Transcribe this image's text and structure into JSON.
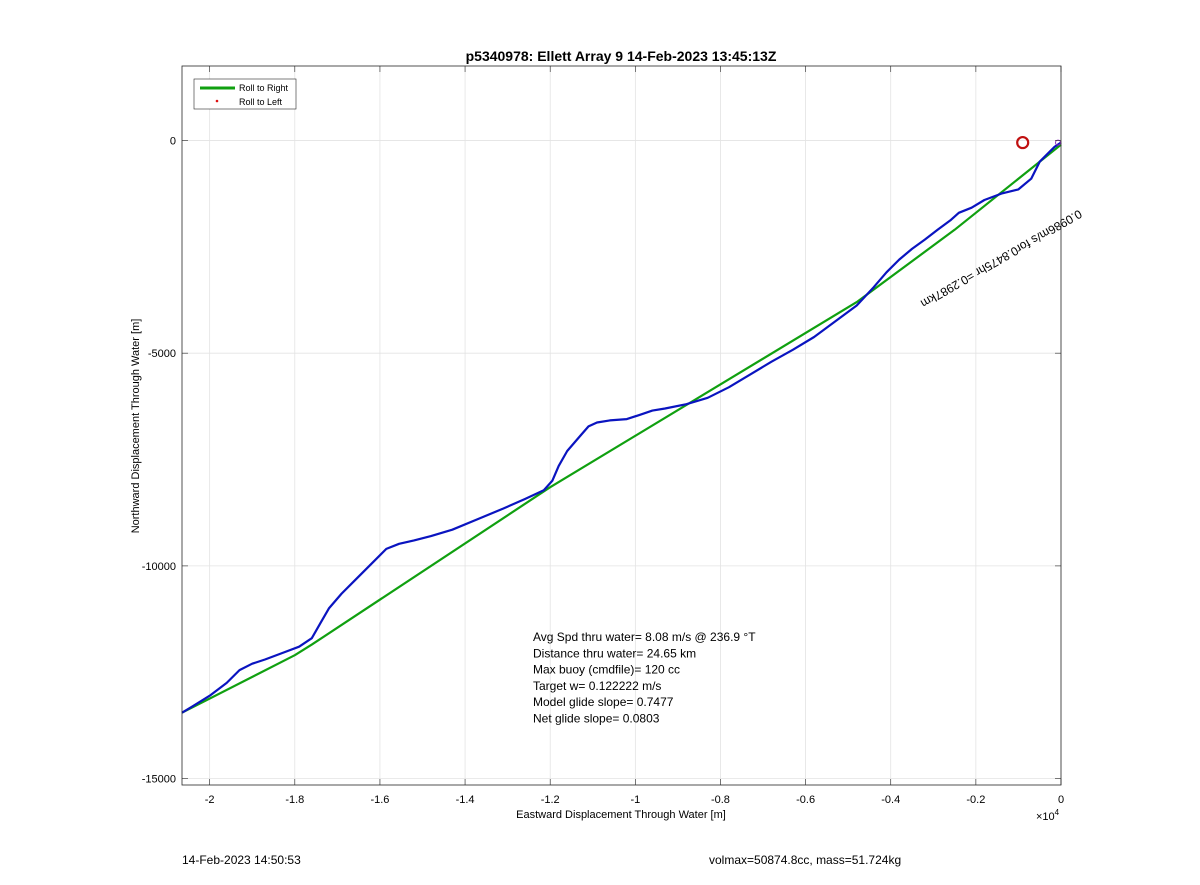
{
  "footer": {
    "timestamp": "14-Feb-2023 14:50:53",
    "vol_mass": "volmax=50874.8cc, mass=51.724kg"
  },
  "colors": {
    "roll_right": "#10a010",
    "roll_left": "#e01010",
    "track": "#0a14c0",
    "marker": "#c01010"
  },
  "chart_data": {
    "type": "line",
    "title": "p5340978: Ellett Array 9 14-Feb-2023 13:45:13Z",
    "xlabel": "Eastward Displacement Through Water [m]",
    "ylabel": "Northward Displacement Through Water [m]",
    "x_exponent_label": "×10",
    "x_exponent_power": "4",
    "xlim": [
      -20650,
      0
    ],
    "ylim": [
      -15150,
      1750
    ],
    "x_ticks": [
      -20000,
      -18000,
      -16000,
      -14000,
      -12000,
      -10000,
      -8000,
      -6000,
      -4000,
      -2000,
      0
    ],
    "x_tick_labels": [
      "-2",
      "-1.8",
      "-1.6",
      "-1.4",
      "-1.2",
      "-1",
      "-0.8",
      "-0.6",
      "-0.4",
      "-0.2",
      "0"
    ],
    "y_ticks": [
      -15000,
      -10000,
      -5000,
      0
    ],
    "y_tick_labels": [
      "-15000",
      "-10000",
      "-5000",
      "0"
    ],
    "grid": true,
    "legend_position": "top-left",
    "series": [
      {
        "name": "Roll to Right",
        "style": "line",
        "x": [
          -20650,
          -18000,
          -17600,
          -12000,
          -4800,
          -2500,
          0
        ],
        "y": [
          -13450,
          -12100,
          -11850,
          -8150,
          -3800,
          -2100,
          -100
        ]
      },
      {
        "name": "Roll to Left",
        "style": "marker",
        "x": [],
        "y": []
      }
    ],
    "track": {
      "x": [
        -20650,
        -20400,
        -20000,
        -19600,
        -19300,
        -19000,
        -18700,
        -18300,
        -17900,
        -17600,
        -17400,
        -17200,
        -16900,
        -16600,
        -16200,
        -15850,
        -15550,
        -15200,
        -14800,
        -14300,
        -13700,
        -13100,
        -12600,
        -12150,
        -11950,
        -11800,
        -11600,
        -11300,
        -11100,
        -10900,
        -10600,
        -10200,
        -9900,
        -9600,
        -9300,
        -8800,
        -8300,
        -7800,
        -7300,
        -6800,
        -6300,
        -5800,
        -5300,
        -4800,
        -4400,
        -4100,
        -3800,
        -3500,
        -3200,
        -2900,
        -2600,
        -2400,
        -2100,
        -1800,
        -1400,
        -1000,
        -700,
        -500,
        -300,
        -150,
        0
      ],
      "y": [
        -13450,
        -13300,
        -13050,
        -12750,
        -12450,
        -12300,
        -12200,
        -12050,
        -11900,
        -11700,
        -11350,
        -11000,
        -10650,
        -10350,
        -9950,
        -9600,
        -9480,
        -9400,
        -9300,
        -9150,
        -8900,
        -8650,
        -8430,
        -8220,
        -8000,
        -7650,
        -7300,
        -6950,
        -6720,
        -6630,
        -6580,
        -6550,
        -6450,
        -6350,
        -6300,
        -6200,
        -6050,
        -5800,
        -5500,
        -5200,
        -4920,
        -4620,
        -4250,
        -3880,
        -3450,
        -3100,
        -2800,
        -2550,
        -2330,
        -2100,
        -1880,
        -1700,
        -1580,
        -1400,
        -1250,
        -1150,
        -900,
        -500,
        -300,
        -150,
        -50
      ]
    },
    "start_marker": {
      "x": -900,
      "y": -50
    },
    "end_marker": {
      "x": 0,
      "y": -50
    },
    "track_annotation": "0.0986m/s for0.8475hr =0.2987km",
    "stats": [
      "Avg Spd thru water=  8.08 m/s @ 236.9 °T",
      "Distance thru water= 24.65 km",
      "Max buoy (cmdfile)= 120 cc",
      "Target w= 0.122222 m/s",
      "Model glide slope= 0.7477",
      "Net glide slope= 0.0803"
    ]
  }
}
